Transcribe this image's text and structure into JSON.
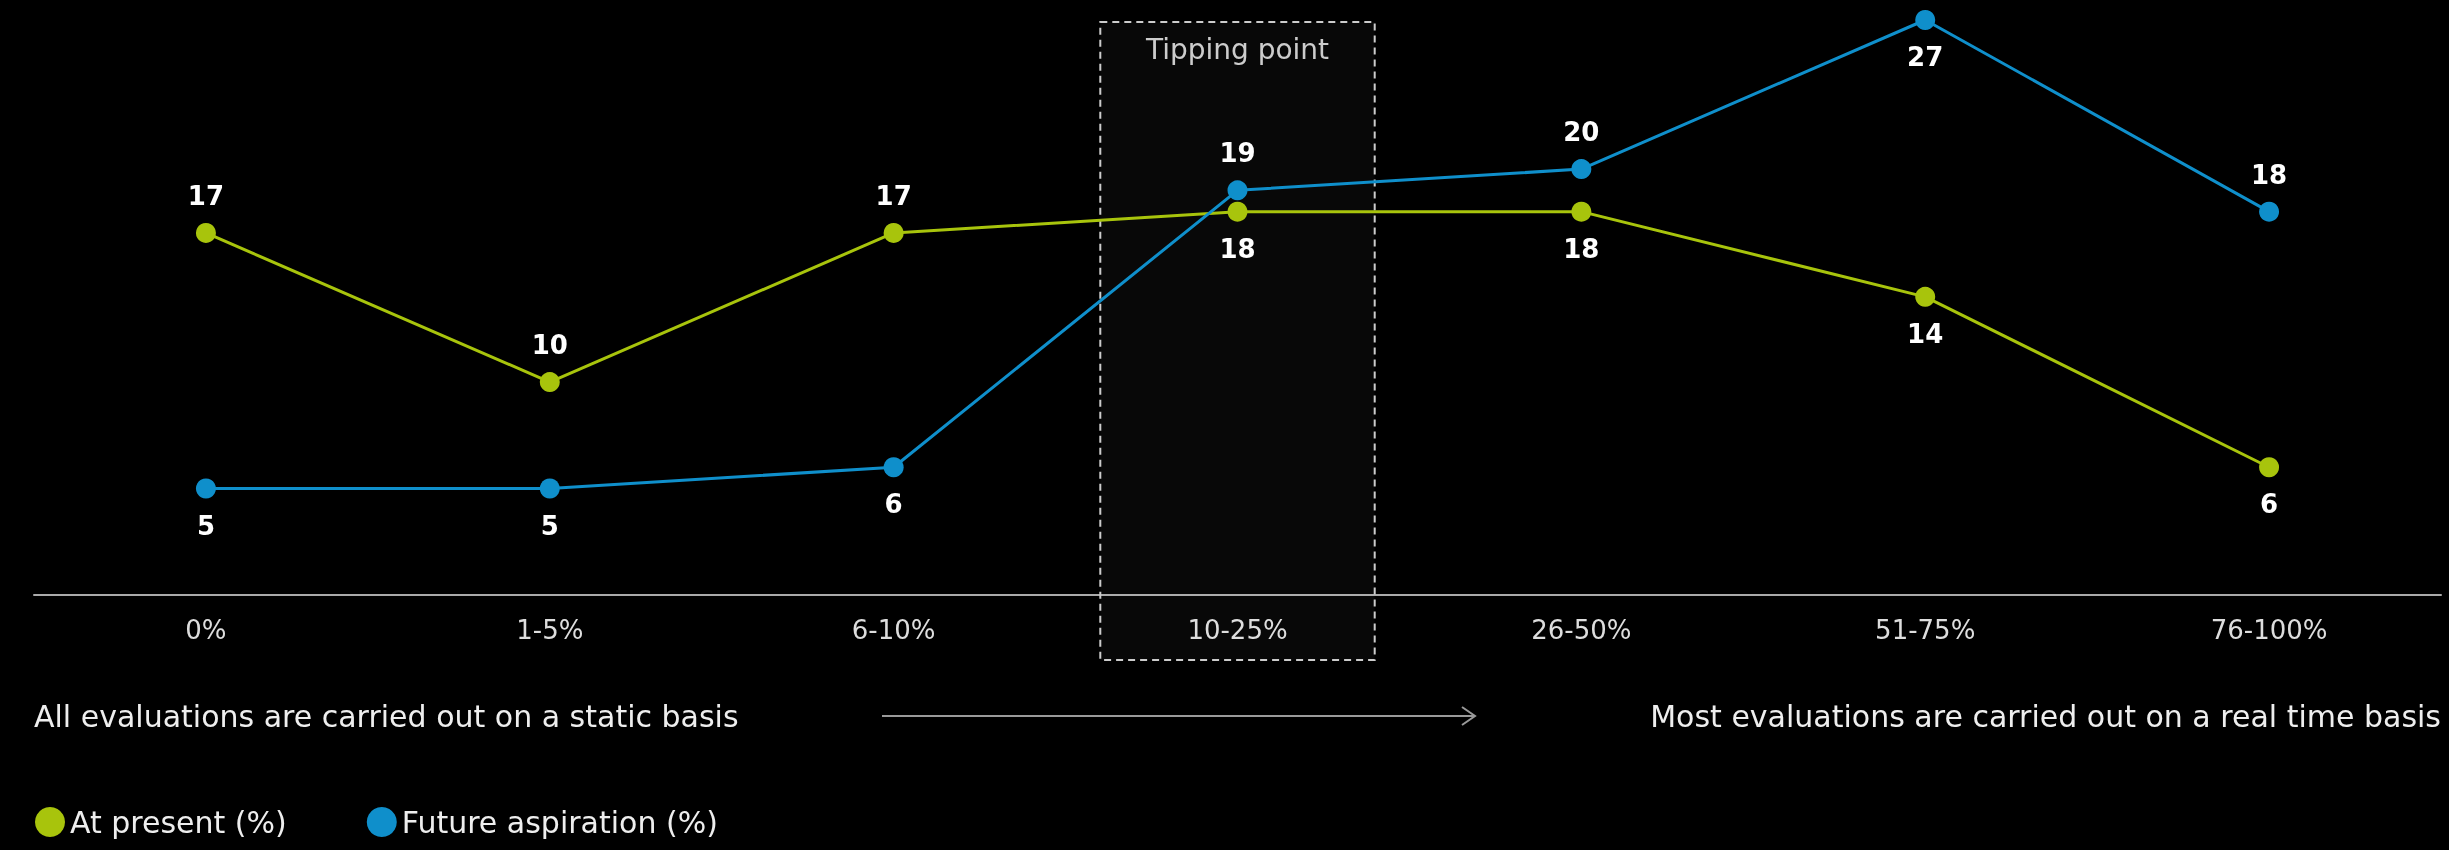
{
  "chart_data": {
    "type": "line",
    "categories": [
      "0%",
      "1-5%",
      "6-10%",
      "10-25%",
      "26-50%",
      "51-75%",
      "76-100%"
    ],
    "series": [
      {
        "name": "At present (%)",
        "color": "#a8c40c",
        "values": [
          17,
          10,
          17,
          18,
          18,
          14,
          6
        ]
      },
      {
        "name": "Future aspiration (%)",
        "color": "#0f8fcb",
        "values": [
          5,
          5,
          6,
          19,
          20,
          27,
          18
        ]
      }
    ],
    "data_labels": true,
    "marker": "circle",
    "line_style": "solid",
    "legend": "bottom left",
    "grid": false,
    "bands": [
      {
        "axis": "x",
        "from": "10-25%",
        "to": "10-25%",
        "label": "Tipping point"
      }
    ],
    "annotations": [
      "All evaluations are carried out on a static basis",
      "Most evaluations are carried out on a real time basis"
    ]
  }
}
